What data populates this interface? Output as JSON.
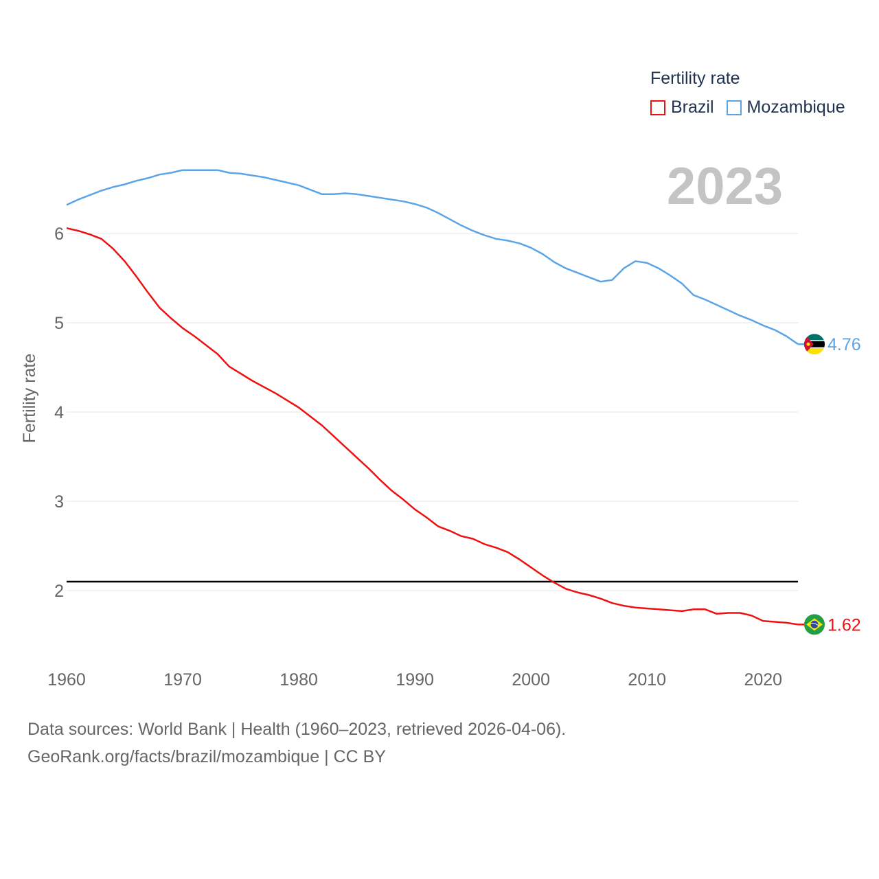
{
  "legend": {
    "title": "Fertility rate",
    "items": [
      {
        "label": "Brazil",
        "color": "#ee1111"
      },
      {
        "label": "Mozambique",
        "color": "#5ba4e6"
      }
    ]
  },
  "year_label": "2023",
  "source": {
    "line1": "Data sources: World Bank | Health (1960–2023, retrieved 2026-04-06).",
    "line2": "GeoRank.org/facts/brazil/mozambique | CC BY"
  },
  "chart_data": {
    "type": "line",
    "title": "Fertility rate",
    "ylabel": "Fertility rate",
    "xlabel": "",
    "xlim": [
      1960,
      2023
    ],
    "ylim": [
      1.2,
      7.0
    ],
    "x_ticks": [
      1960,
      1970,
      1980,
      1990,
      2000,
      2010,
      2020
    ],
    "y_ticks": [
      2,
      3,
      4,
      5,
      6
    ],
    "reference_line": {
      "y": 2.1,
      "color": "#000000"
    },
    "x": [
      1960,
      1961,
      1962,
      1963,
      1964,
      1965,
      1966,
      1967,
      1968,
      1969,
      1970,
      1971,
      1972,
      1973,
      1974,
      1975,
      1976,
      1977,
      1978,
      1979,
      1980,
      1981,
      1982,
      1983,
      1984,
      1985,
      1986,
      1987,
      1988,
      1989,
      1990,
      1991,
      1992,
      1993,
      1994,
      1995,
      1996,
      1997,
      1998,
      1999,
      2000,
      2001,
      2002,
      2003,
      2004,
      2005,
      2006,
      2007,
      2008,
      2009,
      2010,
      2011,
      2012,
      2013,
      2014,
      2015,
      2016,
      2017,
      2018,
      2019,
      2020,
      2021,
      2022,
      2023
    ],
    "series": [
      {
        "name": "Brazil",
        "color": "#ee1111",
        "end_label": "1.62",
        "values": [
          6.06,
          6.03,
          5.99,
          5.94,
          5.83,
          5.69,
          5.52,
          5.34,
          5.17,
          5.05,
          4.94,
          4.85,
          4.75,
          4.65,
          4.51,
          4.43,
          4.35,
          4.28,
          4.21,
          4.13,
          4.05,
          3.95,
          3.85,
          3.73,
          3.61,
          3.49,
          3.37,
          3.24,
          3.12,
          3.02,
          2.91,
          2.82,
          2.72,
          2.67,
          2.61,
          2.58,
          2.52,
          2.48,
          2.43,
          2.35,
          2.26,
          2.17,
          2.09,
          2.02,
          1.98,
          1.95,
          1.91,
          1.86,
          1.83,
          1.81,
          1.8,
          1.79,
          1.78,
          1.77,
          1.79,
          1.79,
          1.74,
          1.75,
          1.75,
          1.72,
          1.66,
          1.65,
          1.64,
          1.62
        ]
      },
      {
        "name": "Mozambique",
        "color": "#5ba4e6",
        "end_label": "4.76",
        "values": [
          6.32,
          6.38,
          6.43,
          6.48,
          6.52,
          6.55,
          6.59,
          6.62,
          6.66,
          6.68,
          6.71,
          6.71,
          6.71,
          6.71,
          6.68,
          6.67,
          6.65,
          6.63,
          6.6,
          6.57,
          6.54,
          6.49,
          6.44,
          6.44,
          6.45,
          6.44,
          6.42,
          6.4,
          6.38,
          6.36,
          6.33,
          6.29,
          6.23,
          6.16,
          6.09,
          6.03,
          5.98,
          5.94,
          5.92,
          5.89,
          5.84,
          5.77,
          5.68,
          5.61,
          5.56,
          5.51,
          5.46,
          5.48,
          5.61,
          5.69,
          5.67,
          5.61,
          5.53,
          5.44,
          5.31,
          5.26,
          5.2,
          5.14,
          5.08,
          5.03,
          4.97,
          4.92,
          4.85,
          4.76
        ]
      }
    ]
  }
}
